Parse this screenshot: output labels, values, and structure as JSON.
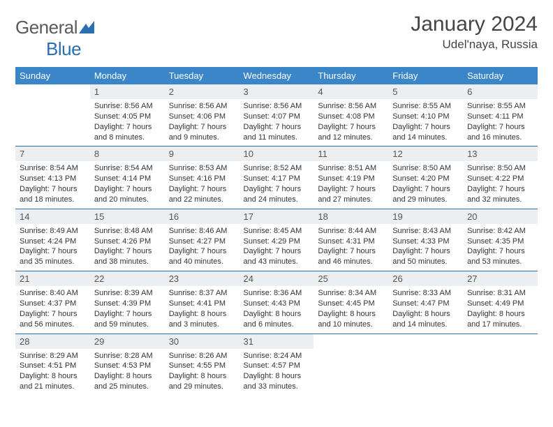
{
  "logo": {
    "text1": "General",
    "text2": "Blue",
    "accent_color": "#2a6fb0",
    "text_color": "#5a5a5a"
  },
  "title": "January 2024",
  "location": "Udel'naya, Russia",
  "header_bg": "#3a86c8",
  "daynum_bg": "#eceff1",
  "border_color": "#2a6fb0",
  "weekdays": [
    "Sunday",
    "Monday",
    "Tuesday",
    "Wednesday",
    "Thursday",
    "Friday",
    "Saturday"
  ],
  "weeks": [
    [
      null,
      {
        "n": "1",
        "sunrise": "8:56 AM",
        "sunset": "4:05 PM",
        "daylight": "7 hours and 8 minutes."
      },
      {
        "n": "2",
        "sunrise": "8:56 AM",
        "sunset": "4:06 PM",
        "daylight": "7 hours and 9 minutes."
      },
      {
        "n": "3",
        "sunrise": "8:56 AM",
        "sunset": "4:07 PM",
        "daylight": "7 hours and 11 minutes."
      },
      {
        "n": "4",
        "sunrise": "8:56 AM",
        "sunset": "4:08 PM",
        "daylight": "7 hours and 12 minutes."
      },
      {
        "n": "5",
        "sunrise": "8:55 AM",
        "sunset": "4:10 PM",
        "daylight": "7 hours and 14 minutes."
      },
      {
        "n": "6",
        "sunrise": "8:55 AM",
        "sunset": "4:11 PM",
        "daylight": "7 hours and 16 minutes."
      }
    ],
    [
      {
        "n": "7",
        "sunrise": "8:54 AM",
        "sunset": "4:13 PM",
        "daylight": "7 hours and 18 minutes."
      },
      {
        "n": "8",
        "sunrise": "8:54 AM",
        "sunset": "4:14 PM",
        "daylight": "7 hours and 20 minutes."
      },
      {
        "n": "9",
        "sunrise": "8:53 AM",
        "sunset": "4:16 PM",
        "daylight": "7 hours and 22 minutes."
      },
      {
        "n": "10",
        "sunrise": "8:52 AM",
        "sunset": "4:17 PM",
        "daylight": "7 hours and 24 minutes."
      },
      {
        "n": "11",
        "sunrise": "8:51 AM",
        "sunset": "4:19 PM",
        "daylight": "7 hours and 27 minutes."
      },
      {
        "n": "12",
        "sunrise": "8:50 AM",
        "sunset": "4:20 PM",
        "daylight": "7 hours and 29 minutes."
      },
      {
        "n": "13",
        "sunrise": "8:50 AM",
        "sunset": "4:22 PM",
        "daylight": "7 hours and 32 minutes."
      }
    ],
    [
      {
        "n": "14",
        "sunrise": "8:49 AM",
        "sunset": "4:24 PM",
        "daylight": "7 hours and 35 minutes."
      },
      {
        "n": "15",
        "sunrise": "8:48 AM",
        "sunset": "4:26 PM",
        "daylight": "7 hours and 38 minutes."
      },
      {
        "n": "16",
        "sunrise": "8:46 AM",
        "sunset": "4:27 PM",
        "daylight": "7 hours and 40 minutes."
      },
      {
        "n": "17",
        "sunrise": "8:45 AM",
        "sunset": "4:29 PM",
        "daylight": "7 hours and 43 minutes."
      },
      {
        "n": "18",
        "sunrise": "8:44 AM",
        "sunset": "4:31 PM",
        "daylight": "7 hours and 46 minutes."
      },
      {
        "n": "19",
        "sunrise": "8:43 AM",
        "sunset": "4:33 PM",
        "daylight": "7 hours and 50 minutes."
      },
      {
        "n": "20",
        "sunrise": "8:42 AM",
        "sunset": "4:35 PM",
        "daylight": "7 hours and 53 minutes."
      }
    ],
    [
      {
        "n": "21",
        "sunrise": "8:40 AM",
        "sunset": "4:37 PM",
        "daylight": "7 hours and 56 minutes."
      },
      {
        "n": "22",
        "sunrise": "8:39 AM",
        "sunset": "4:39 PM",
        "daylight": "7 hours and 59 minutes."
      },
      {
        "n": "23",
        "sunrise": "8:37 AM",
        "sunset": "4:41 PM",
        "daylight": "8 hours and 3 minutes."
      },
      {
        "n": "24",
        "sunrise": "8:36 AM",
        "sunset": "4:43 PM",
        "daylight": "8 hours and 6 minutes."
      },
      {
        "n": "25",
        "sunrise": "8:34 AM",
        "sunset": "4:45 PM",
        "daylight": "8 hours and 10 minutes."
      },
      {
        "n": "26",
        "sunrise": "8:33 AM",
        "sunset": "4:47 PM",
        "daylight": "8 hours and 14 minutes."
      },
      {
        "n": "27",
        "sunrise": "8:31 AM",
        "sunset": "4:49 PM",
        "daylight": "8 hours and 17 minutes."
      }
    ],
    [
      {
        "n": "28",
        "sunrise": "8:29 AM",
        "sunset": "4:51 PM",
        "daylight": "8 hours and 21 minutes."
      },
      {
        "n": "29",
        "sunrise": "8:28 AM",
        "sunset": "4:53 PM",
        "daylight": "8 hours and 25 minutes."
      },
      {
        "n": "30",
        "sunrise": "8:26 AM",
        "sunset": "4:55 PM",
        "daylight": "8 hours and 29 minutes."
      },
      {
        "n": "31",
        "sunrise": "8:24 AM",
        "sunset": "4:57 PM",
        "daylight": "8 hours and 33 minutes."
      },
      null,
      null,
      null
    ]
  ]
}
